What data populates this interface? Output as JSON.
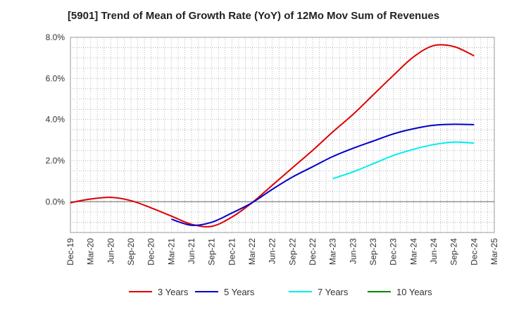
{
  "chart_data": {
    "type": "line",
    "title": "[5901]  Trend of Mean of Growth Rate (YoY) of 12Mo Mov Sum of Revenues",
    "xlabel": "",
    "ylabel": "",
    "ylim": [
      -1.5,
      8.0
    ],
    "yticks": [
      0.0,
      2.0,
      4.0,
      6.0,
      8.0
    ],
    "ytick_labels": [
      "0.0%",
      "2.0%",
      "4.0%",
      "6.0%",
      "8.0%"
    ],
    "grid": true,
    "legend": "bottom",
    "categories": [
      "Dec-19",
      "Mar-20",
      "Jun-20",
      "Sep-20",
      "Dec-20",
      "Mar-21",
      "Jun-21",
      "Sep-21",
      "Dec-21",
      "Mar-22",
      "Jun-22",
      "Sep-22",
      "Dec-22",
      "Mar-23",
      "Jun-23",
      "Sep-23",
      "Dec-23",
      "Mar-24",
      "Jun-24",
      "Sep-24",
      "Dec-24",
      "Mar-25"
    ],
    "series": [
      {
        "name": "3 Years",
        "color": "#dd0000",
        "values": [
          -0.05,
          0.13,
          0.21,
          0.05,
          -0.3,
          -0.7,
          -1.1,
          -1.2,
          -0.75,
          -0.05,
          0.8,
          1.65,
          2.5,
          3.4,
          4.25,
          5.2,
          6.15,
          7.05,
          7.6,
          7.55,
          7.1,
          null
        ]
      },
      {
        "name": "5 Years",
        "color": "#0000cc",
        "values": [
          null,
          null,
          null,
          null,
          null,
          -0.85,
          -1.15,
          -1.0,
          -0.55,
          -0.05,
          0.6,
          1.2,
          1.7,
          2.2,
          2.6,
          2.95,
          3.3,
          3.55,
          3.72,
          3.77,
          3.75,
          null
        ]
      },
      {
        "name": "7 Years",
        "color": "#00eeee",
        "values": [
          null,
          null,
          null,
          null,
          null,
          null,
          null,
          null,
          null,
          null,
          null,
          null,
          null,
          1.12,
          1.45,
          1.85,
          2.25,
          2.55,
          2.78,
          2.9,
          2.85,
          null
        ]
      },
      {
        "name": "10 Years",
        "color": "#008800",
        "values": [
          null,
          null,
          null,
          null,
          null,
          null,
          null,
          null,
          null,
          null,
          null,
          null,
          null,
          null,
          null,
          null,
          null,
          null,
          null,
          null,
          null,
          null
        ]
      }
    ]
  }
}
